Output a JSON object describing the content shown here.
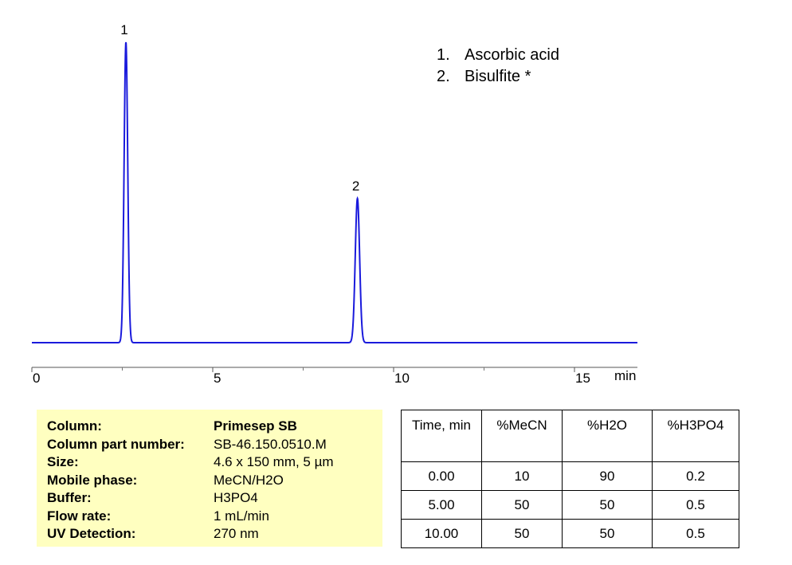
{
  "chart_data": {
    "type": "line",
    "xlabel": "min",
    "xlim": [
      0,
      17
    ],
    "ylim": [
      0,
      1
    ],
    "x_ticks": [
      0,
      5,
      10,
      15
    ],
    "x_minor_ticks": [
      2.5,
      7.5,
      12.5
    ],
    "series": [
      {
        "color": "#1a1adc",
        "baseline": 0.0,
        "peaks": [
          {
            "label": "1",
            "x": 2.6,
            "y": 1.0,
            "sigma": 0.05
          },
          {
            "label": "2",
            "x": 9.0,
            "y": 0.48,
            "sigma": 0.06
          }
        ]
      }
    ]
  },
  "legend": {
    "items": [
      {
        "num": "1.",
        "name": "Ascorbic acid"
      },
      {
        "num": "2.",
        "name": "Bisulfite *"
      }
    ]
  },
  "conditions": [
    {
      "key": "Column:",
      "value": "Primesep SB"
    },
    {
      "key": "Column part number:",
      "value": "SB-46.150.0510.M"
    },
    {
      "key": "Size:",
      "value": "4.6  x 150 mm, 5 µm"
    },
    {
      "key": "Mobile phase:",
      "value": "MeCN/H2O"
    },
    {
      "key": "Buffer:",
      "value": "H3PO4"
    },
    {
      "key": "Flow rate:",
      "value": "1 mL/min"
    },
    {
      "key": "UV Detection:",
      "value": "270 nm"
    }
  ],
  "gradient_table": {
    "headers": [
      "Time, min",
      "%MeCN",
      "%H2O",
      "%H3PO4"
    ],
    "rows": [
      [
        "0.00",
        "10",
        "90",
        "0.2"
      ],
      [
        "5.00",
        "50",
        "50",
        "0.5"
      ],
      [
        "10.00",
        "50",
        "50",
        "0.5"
      ]
    ]
  }
}
